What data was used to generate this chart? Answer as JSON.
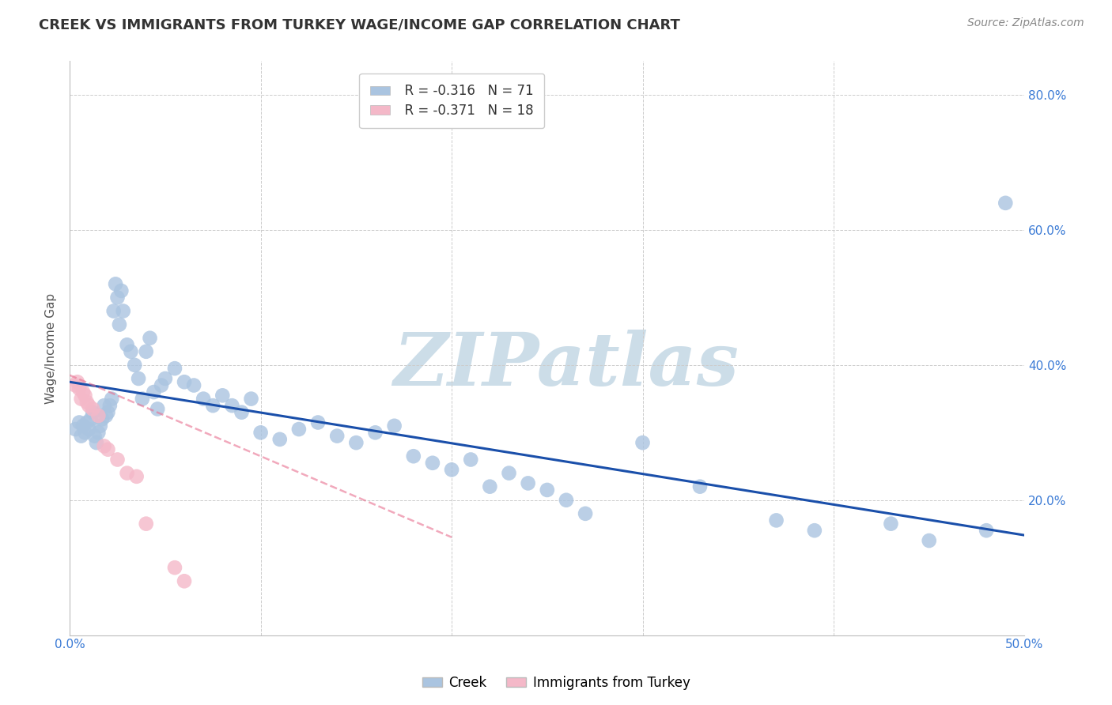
{
  "title": "CREEK VS IMMIGRANTS FROM TURKEY WAGE/INCOME GAP CORRELATION CHART",
  "source": "Source: ZipAtlas.com",
  "ylabel": "Wage/Income Gap",
  "xlim": [
    0.0,
    0.5
  ],
  "ylim": [
    0.0,
    0.85
  ],
  "xticks": [
    0.0,
    0.1,
    0.2,
    0.3,
    0.4,
    0.5
  ],
  "xticklabels": [
    "0.0%",
    "",
    "",
    "",
    "",
    "50.0%"
  ],
  "yticks": [
    0.0,
    0.2,
    0.4,
    0.6,
    0.8
  ],
  "yticklabels_right": [
    "",
    "20.0%",
    "40.0%",
    "60.0%",
    "80.0%"
  ],
  "creek_color": "#aac4e0",
  "turkey_color": "#f4b8c8",
  "creek_line_color": "#1a4faa",
  "turkey_line_color": "#e87090",
  "legend_R_creek": "R = -0.316",
  "legend_N_creek": "N = 71",
  "legend_R_turkey": "R = -0.371",
  "legend_N_turkey": "N = 18",
  "watermark": "ZIPatlas",
  "watermark_color": "#ccdde8",
  "creek_scatter": [
    [
      0.003,
      0.305
    ],
    [
      0.005,
      0.315
    ],
    [
      0.006,
      0.295
    ],
    [
      0.007,
      0.31
    ],
    [
      0.008,
      0.3
    ],
    [
      0.009,
      0.315
    ],
    [
      0.01,
      0.305
    ],
    [
      0.011,
      0.32
    ],
    [
      0.012,
      0.33
    ],
    [
      0.013,
      0.295
    ],
    [
      0.014,
      0.285
    ],
    [
      0.015,
      0.3
    ],
    [
      0.016,
      0.31
    ],
    [
      0.017,
      0.32
    ],
    [
      0.018,
      0.34
    ],
    [
      0.019,
      0.325
    ],
    [
      0.02,
      0.33
    ],
    [
      0.021,
      0.34
    ],
    [
      0.022,
      0.35
    ],
    [
      0.023,
      0.48
    ],
    [
      0.024,
      0.52
    ],
    [
      0.025,
      0.5
    ],
    [
      0.026,
      0.46
    ],
    [
      0.027,
      0.51
    ],
    [
      0.028,
      0.48
    ],
    [
      0.03,
      0.43
    ],
    [
      0.032,
      0.42
    ],
    [
      0.034,
      0.4
    ],
    [
      0.036,
      0.38
    ],
    [
      0.038,
      0.35
    ],
    [
      0.04,
      0.42
    ],
    [
      0.042,
      0.44
    ],
    [
      0.044,
      0.36
    ],
    [
      0.046,
      0.335
    ],
    [
      0.048,
      0.37
    ],
    [
      0.05,
      0.38
    ],
    [
      0.055,
      0.395
    ],
    [
      0.06,
      0.375
    ],
    [
      0.065,
      0.37
    ],
    [
      0.07,
      0.35
    ],
    [
      0.075,
      0.34
    ],
    [
      0.08,
      0.355
    ],
    [
      0.085,
      0.34
    ],
    [
      0.09,
      0.33
    ],
    [
      0.095,
      0.35
    ],
    [
      0.1,
      0.3
    ],
    [
      0.11,
      0.29
    ],
    [
      0.12,
      0.305
    ],
    [
      0.13,
      0.315
    ],
    [
      0.14,
      0.295
    ],
    [
      0.15,
      0.285
    ],
    [
      0.16,
      0.3
    ],
    [
      0.17,
      0.31
    ],
    [
      0.18,
      0.265
    ],
    [
      0.19,
      0.255
    ],
    [
      0.2,
      0.245
    ],
    [
      0.21,
      0.26
    ],
    [
      0.22,
      0.22
    ],
    [
      0.23,
      0.24
    ],
    [
      0.24,
      0.225
    ],
    [
      0.25,
      0.215
    ],
    [
      0.26,
      0.2
    ],
    [
      0.27,
      0.18
    ],
    [
      0.3,
      0.285
    ],
    [
      0.33,
      0.22
    ],
    [
      0.37,
      0.17
    ],
    [
      0.39,
      0.155
    ],
    [
      0.43,
      0.165
    ],
    [
      0.45,
      0.14
    ],
    [
      0.48,
      0.155
    ],
    [
      0.49,
      0.64
    ]
  ],
  "turkey_scatter": [
    [
      0.003,
      0.37
    ],
    [
      0.004,
      0.375
    ],
    [
      0.005,
      0.365
    ],
    [
      0.006,
      0.35
    ],
    [
      0.007,
      0.36
    ],
    [
      0.008,
      0.355
    ],
    [
      0.009,
      0.345
    ],
    [
      0.01,
      0.34
    ],
    [
      0.012,
      0.335
    ],
    [
      0.015,
      0.325
    ],
    [
      0.018,
      0.28
    ],
    [
      0.02,
      0.275
    ],
    [
      0.025,
      0.26
    ],
    [
      0.03,
      0.24
    ],
    [
      0.035,
      0.235
    ],
    [
      0.04,
      0.165
    ],
    [
      0.055,
      0.1
    ],
    [
      0.06,
      0.08
    ]
  ],
  "creek_line": [
    [
      0.0,
      0.375
    ],
    [
      0.5,
      0.148
    ]
  ],
  "turkey_line": [
    [
      0.0,
      0.385
    ],
    [
      0.2,
      0.145
    ]
  ]
}
